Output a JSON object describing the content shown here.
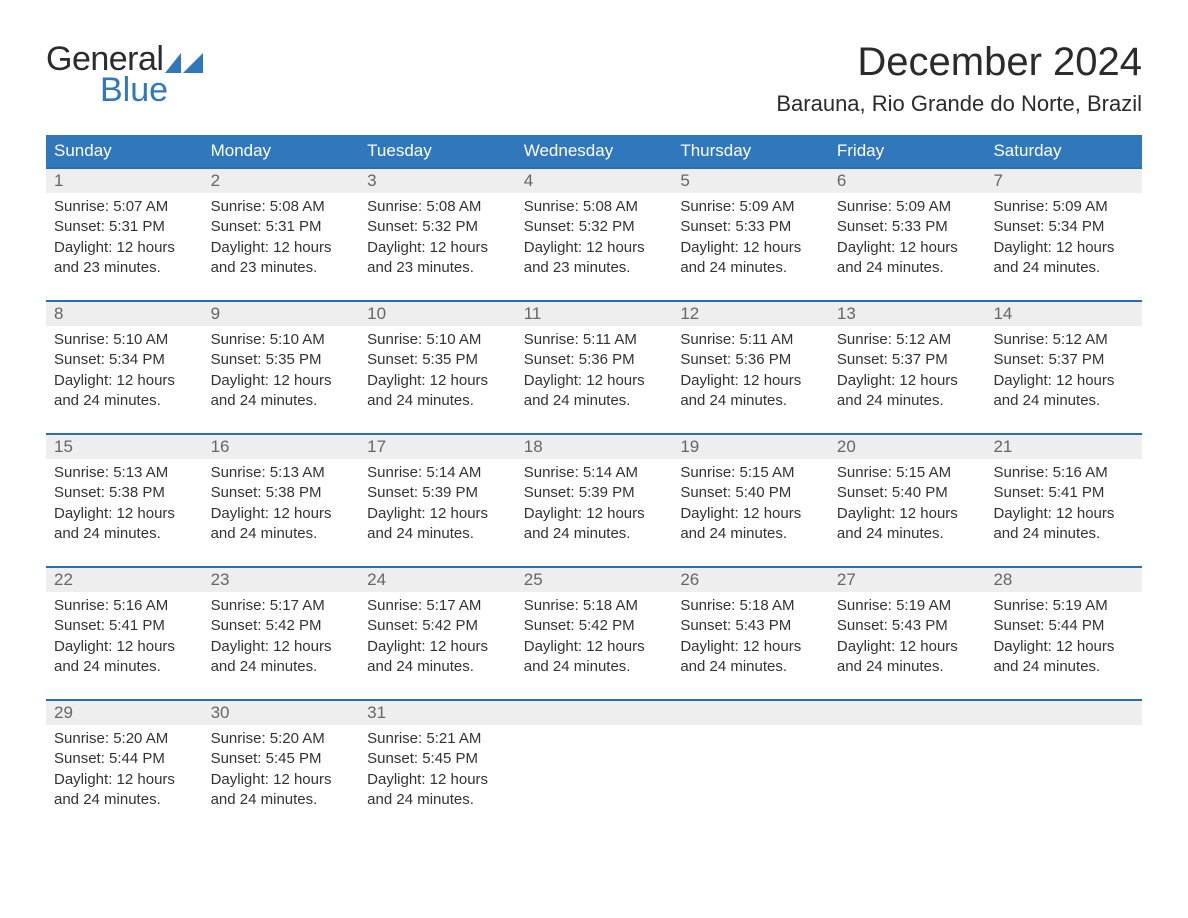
{
  "logo": {
    "word1": "General",
    "word2": "Blue"
  },
  "title": "December 2024",
  "location": "Barauna, Rio Grande do Norte, Brazil",
  "colors": {
    "header_bg": "#3177bb",
    "header_text": "#ffffff",
    "row_divider": "#2a6db0",
    "daynum_bg": "#eeeeee",
    "daynum_text": "#666666",
    "body_text": "#333333",
    "page_bg": "#ffffff",
    "logo_accent": "#3177bb"
  },
  "typography": {
    "title_fontsize": 40,
    "location_fontsize": 22,
    "dow_fontsize": 17,
    "daynum_fontsize": 17,
    "cell_fontsize": 15,
    "font_family": "Arial"
  },
  "layout": {
    "columns": 7,
    "rows": 5,
    "aspect": "1188x918"
  },
  "dow": [
    "Sunday",
    "Monday",
    "Tuesday",
    "Wednesday",
    "Thursday",
    "Friday",
    "Saturday"
  ],
  "weeks": [
    [
      {
        "n": "1",
        "sunrise": "Sunrise: 5:07 AM",
        "sunset": "Sunset: 5:31 PM",
        "d1": "Daylight: 12 hours",
        "d2": "and 23 minutes."
      },
      {
        "n": "2",
        "sunrise": "Sunrise: 5:08 AM",
        "sunset": "Sunset: 5:31 PM",
        "d1": "Daylight: 12 hours",
        "d2": "and 23 minutes."
      },
      {
        "n": "3",
        "sunrise": "Sunrise: 5:08 AM",
        "sunset": "Sunset: 5:32 PM",
        "d1": "Daylight: 12 hours",
        "d2": "and 23 minutes."
      },
      {
        "n": "4",
        "sunrise": "Sunrise: 5:08 AM",
        "sunset": "Sunset: 5:32 PM",
        "d1": "Daylight: 12 hours",
        "d2": "and 23 minutes."
      },
      {
        "n": "5",
        "sunrise": "Sunrise: 5:09 AM",
        "sunset": "Sunset: 5:33 PM",
        "d1": "Daylight: 12 hours",
        "d2": "and 24 minutes."
      },
      {
        "n": "6",
        "sunrise": "Sunrise: 5:09 AM",
        "sunset": "Sunset: 5:33 PM",
        "d1": "Daylight: 12 hours",
        "d2": "and 24 minutes."
      },
      {
        "n": "7",
        "sunrise": "Sunrise: 5:09 AM",
        "sunset": "Sunset: 5:34 PM",
        "d1": "Daylight: 12 hours",
        "d2": "and 24 minutes."
      }
    ],
    [
      {
        "n": "8",
        "sunrise": "Sunrise: 5:10 AM",
        "sunset": "Sunset: 5:34 PM",
        "d1": "Daylight: 12 hours",
        "d2": "and 24 minutes."
      },
      {
        "n": "9",
        "sunrise": "Sunrise: 5:10 AM",
        "sunset": "Sunset: 5:35 PM",
        "d1": "Daylight: 12 hours",
        "d2": "and 24 minutes."
      },
      {
        "n": "10",
        "sunrise": "Sunrise: 5:10 AM",
        "sunset": "Sunset: 5:35 PM",
        "d1": "Daylight: 12 hours",
        "d2": "and 24 minutes."
      },
      {
        "n": "11",
        "sunrise": "Sunrise: 5:11 AM",
        "sunset": "Sunset: 5:36 PM",
        "d1": "Daylight: 12 hours",
        "d2": "and 24 minutes."
      },
      {
        "n": "12",
        "sunrise": "Sunrise: 5:11 AM",
        "sunset": "Sunset: 5:36 PM",
        "d1": "Daylight: 12 hours",
        "d2": "and 24 minutes."
      },
      {
        "n": "13",
        "sunrise": "Sunrise: 5:12 AM",
        "sunset": "Sunset: 5:37 PM",
        "d1": "Daylight: 12 hours",
        "d2": "and 24 minutes."
      },
      {
        "n": "14",
        "sunrise": "Sunrise: 5:12 AM",
        "sunset": "Sunset: 5:37 PM",
        "d1": "Daylight: 12 hours",
        "d2": "and 24 minutes."
      }
    ],
    [
      {
        "n": "15",
        "sunrise": "Sunrise: 5:13 AM",
        "sunset": "Sunset: 5:38 PM",
        "d1": "Daylight: 12 hours",
        "d2": "and 24 minutes."
      },
      {
        "n": "16",
        "sunrise": "Sunrise: 5:13 AM",
        "sunset": "Sunset: 5:38 PM",
        "d1": "Daylight: 12 hours",
        "d2": "and 24 minutes."
      },
      {
        "n": "17",
        "sunrise": "Sunrise: 5:14 AM",
        "sunset": "Sunset: 5:39 PM",
        "d1": "Daylight: 12 hours",
        "d2": "and 24 minutes."
      },
      {
        "n": "18",
        "sunrise": "Sunrise: 5:14 AM",
        "sunset": "Sunset: 5:39 PM",
        "d1": "Daylight: 12 hours",
        "d2": "and 24 minutes."
      },
      {
        "n": "19",
        "sunrise": "Sunrise: 5:15 AM",
        "sunset": "Sunset: 5:40 PM",
        "d1": "Daylight: 12 hours",
        "d2": "and 24 minutes."
      },
      {
        "n": "20",
        "sunrise": "Sunrise: 5:15 AM",
        "sunset": "Sunset: 5:40 PM",
        "d1": "Daylight: 12 hours",
        "d2": "and 24 minutes."
      },
      {
        "n": "21",
        "sunrise": "Sunrise: 5:16 AM",
        "sunset": "Sunset: 5:41 PM",
        "d1": "Daylight: 12 hours",
        "d2": "and 24 minutes."
      }
    ],
    [
      {
        "n": "22",
        "sunrise": "Sunrise: 5:16 AM",
        "sunset": "Sunset: 5:41 PM",
        "d1": "Daylight: 12 hours",
        "d2": "and 24 minutes."
      },
      {
        "n": "23",
        "sunrise": "Sunrise: 5:17 AM",
        "sunset": "Sunset: 5:42 PM",
        "d1": "Daylight: 12 hours",
        "d2": "and 24 minutes."
      },
      {
        "n": "24",
        "sunrise": "Sunrise: 5:17 AM",
        "sunset": "Sunset: 5:42 PM",
        "d1": "Daylight: 12 hours",
        "d2": "and 24 minutes."
      },
      {
        "n": "25",
        "sunrise": "Sunrise: 5:18 AM",
        "sunset": "Sunset: 5:42 PM",
        "d1": "Daylight: 12 hours",
        "d2": "and 24 minutes."
      },
      {
        "n": "26",
        "sunrise": "Sunrise: 5:18 AM",
        "sunset": "Sunset: 5:43 PM",
        "d1": "Daylight: 12 hours",
        "d2": "and 24 minutes."
      },
      {
        "n": "27",
        "sunrise": "Sunrise: 5:19 AM",
        "sunset": "Sunset: 5:43 PM",
        "d1": "Daylight: 12 hours",
        "d2": "and 24 minutes."
      },
      {
        "n": "28",
        "sunrise": "Sunrise: 5:19 AM",
        "sunset": "Sunset: 5:44 PM",
        "d1": "Daylight: 12 hours",
        "d2": "and 24 minutes."
      }
    ],
    [
      {
        "n": "29",
        "sunrise": "Sunrise: 5:20 AM",
        "sunset": "Sunset: 5:44 PM",
        "d1": "Daylight: 12 hours",
        "d2": "and 24 minutes."
      },
      {
        "n": "30",
        "sunrise": "Sunrise: 5:20 AM",
        "sunset": "Sunset: 5:45 PM",
        "d1": "Daylight: 12 hours",
        "d2": "and 24 minutes."
      },
      {
        "n": "31",
        "sunrise": "Sunrise: 5:21 AM",
        "sunset": "Sunset: 5:45 PM",
        "d1": "Daylight: 12 hours",
        "d2": "and 24 minutes."
      },
      null,
      null,
      null,
      null
    ]
  ]
}
